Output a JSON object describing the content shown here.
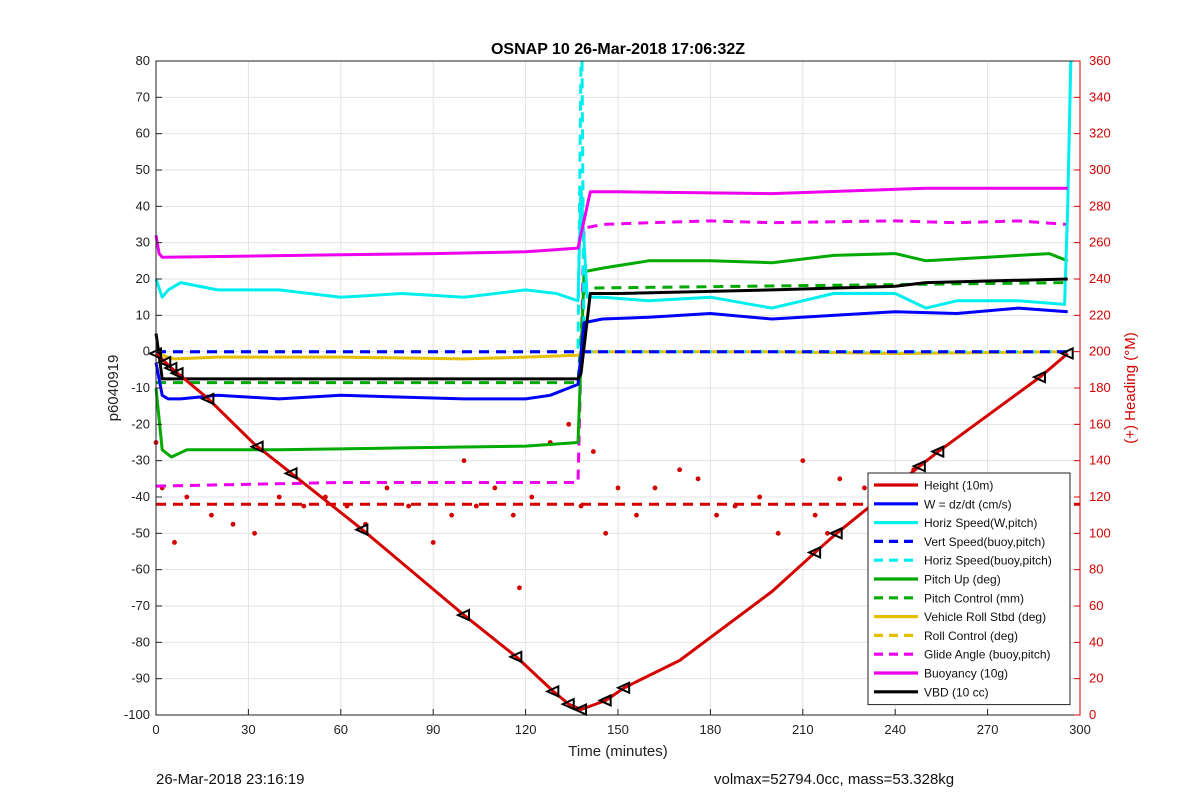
{
  "chart_data": {
    "type": "line",
    "title": "OSNAP 10 26-Mar-2018 17:06:32Z",
    "xlabel": "Time (minutes)",
    "ylabel": "p6040919",
    "y2label": "(+) Heading (°M)",
    "xlim": [
      0,
      300
    ],
    "ylim": [
      -100,
      80
    ],
    "y2lim": [
      0,
      360
    ],
    "xticks": [
      0,
      30,
      60,
      90,
      120,
      150,
      180,
      210,
      240,
      270,
      300
    ],
    "yticks": [
      -100,
      -90,
      -80,
      -70,
      -60,
      -50,
      -40,
      -30,
      -20,
      -10,
      0,
      10,
      20,
      30,
      40,
      50,
      60,
      70,
      80
    ],
    "y2ticks": [
      0,
      20,
      40,
      60,
      80,
      100,
      120,
      140,
      160,
      180,
      200,
      220,
      240,
      260,
      280,
      300,
      320,
      340,
      360
    ],
    "grid": true,
    "legend_position": "bottom-right",
    "series": [
      {
        "name": "Height (10m)",
        "color": "#d40000",
        "style": "solid",
        "axis": "left",
        "x": [
          0,
          5,
          17,
          32,
          44,
          67,
          100,
          117,
          129,
          134,
          138,
          146,
          152,
          170,
          200,
          215,
          221,
          248,
          254,
          287,
          296
        ],
        "y": [
          -0.5,
          -4.5,
          -13,
          -25.5,
          -33.5,
          -49,
          -72.5,
          -84,
          -93.5,
          -97,
          -98.5,
          -96,
          -92.5,
          -85,
          -66,
          -54.5,
          -50,
          -31.5,
          -27.5,
          -7,
          -0.5
        ]
      },
      {
        "name": "W = dz/dt (cm/s)",
        "color": "#0000ff",
        "style": "solid",
        "axis": "left",
        "x": [
          0,
          2,
          4,
          8,
          20,
          40,
          60,
          80,
          100,
          120,
          128,
          134,
          137,
          139,
          145,
          160,
          180,
          200,
          240,
          260,
          280,
          296
        ],
        "y": [
          -3,
          -12,
          -13,
          -13,
          -12,
          -13,
          -12,
          -12.5,
          -13,
          -13,
          -12,
          -10,
          -9,
          8,
          9,
          9.5,
          10.5,
          9,
          11,
          10.5,
          12,
          11
        ]
      },
      {
        "name": "Horiz Speed(W,pitch)",
        "color": "#00eeee",
        "style": "solid",
        "axis": "left",
        "x": [
          0,
          2,
          4,
          8,
          20,
          40,
          60,
          80,
          100,
          120,
          130,
          137,
          138,
          140,
          145,
          160,
          180,
          200,
          220,
          240,
          250,
          260,
          280,
          295,
          296,
          297
        ],
        "y": [
          20,
          15,
          17,
          19,
          17,
          17,
          15,
          16,
          15,
          17,
          16,
          14,
          45,
          15,
          15,
          14,
          15,
          12,
          16,
          16,
          12,
          14,
          14,
          13,
          40,
          80
        ]
      },
      {
        "name": "Vert Speed(buoy,pitch)",
        "color": "#0000ff",
        "style": "dashed",
        "axis": "left",
        "x": [
          0,
          137,
          139,
          296
        ],
        "y": [
          0,
          0,
          0,
          0
        ]
      },
      {
        "name": "Horiz Speed(buoy,pitch)",
        "color": "#00eeee",
        "style": "dashed",
        "axis": "left",
        "x": [
          0,
          137,
          138,
          138.3,
          139,
          296
        ],
        "y": [
          0,
          0,
          80,
          80,
          0,
          0
        ]
      },
      {
        "name": "Pitch Up (deg)",
        "color": "#00aa00",
        "style": "solid",
        "axis": "left",
        "x": [
          0,
          2,
          5,
          10,
          40,
          80,
          120,
          137,
          139,
          145,
          160,
          180,
          200,
          220,
          240,
          250,
          270,
          290,
          296
        ],
        "y": [
          -10,
          -27,
          -29,
          -27,
          -27,
          -26.5,
          -26,
          -25,
          22,
          23,
          25,
          25,
          24.5,
          26.5,
          27,
          25,
          26,
          27,
          25
        ]
      },
      {
        "name": "Pitch Control (mm)",
        "color": "#00aa00",
        "style": "dashed",
        "axis": "left",
        "x": [
          0,
          137,
          139,
          296
        ],
        "y": [
          -8.5,
          -8.5,
          17.5,
          19
        ]
      },
      {
        "name": "Vehicle Roll Stbd (deg)",
        "color": "#e6c000",
        "style": "solid",
        "axis": "left",
        "x": [
          0,
          2,
          6,
          20,
          60,
          100,
          120,
          137,
          139,
          150,
          200,
          240,
          296
        ],
        "y": [
          0,
          -1,
          -2,
          -1.5,
          -1.5,
          -2,
          -1.5,
          -1,
          0,
          0,
          0,
          -0.5,
          0
        ]
      },
      {
        "name": "Roll Control (deg)",
        "color": "#e6c000",
        "style": "dashed",
        "axis": "left",
        "x": [
          0,
          296
        ],
        "y": [
          0,
          0
        ]
      },
      {
        "name": "Glide Angle (buoy,pitch)",
        "color": "#ee00ee",
        "style": "dashed",
        "axis": "left",
        "x": [
          0,
          60,
          120,
          137,
          139,
          145,
          160,
          180,
          200,
          240,
          260,
          280,
          296
        ],
        "y": [
          -37,
          -36,
          -36,
          -36,
          34,
          35,
          35.5,
          36,
          35.5,
          36,
          35.5,
          36,
          35
        ]
      },
      {
        "name": "Buoyancy (10g)",
        "color": "#ee00ee",
        "style": "solid",
        "axis": "left",
        "x": [
          0,
          1,
          2,
          30,
          60,
          90,
          120,
          129,
          134,
          137,
          141,
          150,
          200,
          250,
          296
        ],
        "y": [
          32,
          27,
          26,
          26.3,
          26.7,
          27,
          27.5,
          28,
          28.3,
          28.5,
          44,
          44,
          43.5,
          45,
          45
        ]
      },
      {
        "name": "VBD (10 cc)",
        "color": "#000000",
        "style": "solid",
        "axis": "left",
        "x": [
          0,
          1,
          2,
          137,
          138,
          141,
          150,
          200,
          240,
          250,
          296
        ],
        "y": [
          5,
          -1,
          -7.5,
          -7.5,
          -6,
          16,
          16,
          17,
          18,
          19,
          20
        ]
      },
      {
        "name": "Heading",
        "color": "#d40000",
        "style": "dots",
        "axis": "right",
        "x": [
          0,
          2,
          6,
          10,
          18,
          25,
          32,
          40,
          48,
          55,
          62,
          68,
          75,
          82,
          90,
          96,
          100,
          104,
          110,
          116,
          118,
          122,
          128,
          134,
          138,
          142,
          146,
          150,
          156,
          162,
          170,
          176,
          182,
          188,
          196,
          202,
          210,
          214,
          218,
          222,
          230,
          238,
          246,
          254,
          262,
          270,
          278,
          286,
          294,
          296
        ],
        "y": [
          150,
          125,
          95,
          120,
          110,
          105,
          100,
          120,
          115,
          120,
          115,
          105,
          125,
          115,
          95,
          110,
          140,
          115,
          125,
          110,
          70,
          120,
          150,
          160,
          115,
          145,
          100,
          125,
          110,
          125,
          135,
          130,
          110,
          115,
          120,
          100,
          140,
          110,
          100,
          130,
          125,
          115,
          135,
          130,
          120,
          110,
          115,
          120,
          110,
          100
        ]
      },
      {
        "name": "Heading target",
        "color": "#d40000",
        "style": "dashed",
        "axis": "right",
        "x": [
          0,
          300
        ],
        "y": [
          116,
          116
        ]
      }
    ],
    "legend_labels": [
      "Height (10m)",
      "W = dz/dt (cm/s)",
      "Horiz Speed(W,pitch)",
      "Vert Speed(buoy,pitch)",
      "Horiz Speed(buoy,pitch)",
      "Pitch Up (deg)",
      "Pitch Control (mm)",
      "Vehicle Roll Stbd (deg)",
      "Roll Control (deg)",
      "Glide Angle (buoy,pitch)",
      "Buoyancy (10g)",
      "VBD (10 cc)"
    ],
    "markers_x": [
      0,
      3,
      5,
      7,
      17,
      33,
      44,
      67,
      100,
      117,
      129,
      134,
      138,
      146,
      152,
      214,
      221,
      248,
      254,
      287,
      296
    ]
  },
  "footer": {
    "left": "26-Mar-2018 23:16:19",
    "right": "volmax=52794.0cc, mass=53.328kg"
  }
}
